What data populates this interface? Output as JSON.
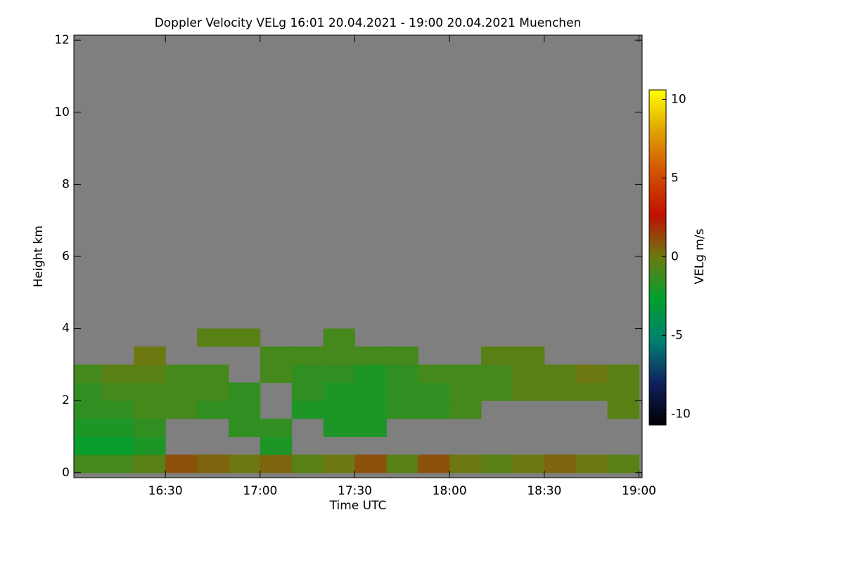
{
  "chart_data": {
    "type": "heatmap",
    "title": "Doppler Velocity VELg   16:01 20.04.2021 - 19:00 20.04.2021 Muenchen",
    "x_label": "Time UTC",
    "y_label": "Height km",
    "colorbar_label": "VELg m/s",
    "x_edges": [
      961,
      970,
      980,
      990,
      1000,
      1010,
      1020,
      1030,
      1040,
      1050,
      1060,
      1070,
      1080,
      1090,
      1100,
      1110,
      1120,
      1130,
      1140
    ],
    "y_edges": [
      0,
      0.5,
      1,
      1.5,
      2,
      2.5,
      3,
      3.5,
      4
    ],
    "values": [
      [
        -1,
        -1,
        -0.5,
        1,
        0.5,
        0,
        0.5,
        -0.5,
        0,
        1,
        -0.5,
        1,
        0,
        -0.5,
        0,
        0.5,
        0,
        -0.5
      ],
      [
        -2.5,
        -2.5,
        -2,
        null,
        null,
        null,
        -2,
        null,
        null,
        null,
        null,
        null,
        null,
        null,
        null,
        null,
        null,
        null
      ],
      [
        -2,
        -2,
        -1.5,
        null,
        null,
        -1.5,
        -1.5,
        null,
        -2,
        -2,
        null,
        null,
        null,
        null,
        null,
        null,
        null,
        null
      ],
      [
        -1.5,
        -1.5,
        -1,
        -1,
        -1.5,
        -1.5,
        null,
        -2,
        -2,
        -2,
        -1.5,
        -1.5,
        -1,
        null,
        null,
        null,
        null,
        -0.5
      ],
      [
        -1.5,
        -1,
        -1,
        -1,
        -1,
        -1.5,
        null,
        -1.5,
        -2,
        -2,
        -1.5,
        -1.5,
        -1,
        -1,
        -0.5,
        -0.5,
        -0.5,
        -0.5
      ],
      [
        -1,
        -0.5,
        -0.5,
        -1,
        -1,
        null,
        -1,
        -1.5,
        -1.5,
        -2,
        -1.5,
        -1,
        -1,
        -1,
        -0.5,
        -0.5,
        0,
        -0.5
      ],
      [
        null,
        null,
        0,
        null,
        null,
        null,
        -1,
        -1,
        -1,
        -1,
        -1,
        null,
        null,
        -0.5,
        -0.5,
        null,
        null,
        null
      ],
      [
        null,
        null,
        null,
        null,
        -0.5,
        -0.5,
        null,
        null,
        -1,
        null,
        null,
        null,
        null,
        null,
        null,
        null,
        null,
        null
      ]
    ],
    "xlim": [
      961,
      1141
    ],
    "xticks": [
      {
        "value": 990,
        "label": "16:30"
      },
      {
        "value": 1020,
        "label": "17:00"
      },
      {
        "value": 1050,
        "label": "17:30"
      },
      {
        "value": 1080,
        "label": "18:00"
      },
      {
        "value": 1110,
        "label": "18:30"
      },
      {
        "value": 1140,
        "label": "19:00"
      }
    ],
    "ylim": [
      -0.14,
      12.14
    ],
    "yticks": [
      0,
      2,
      4,
      6,
      8,
      10,
      12
    ],
    "clim": [
      -10.7,
      10.6
    ],
    "cticks": [
      10,
      5,
      0,
      -5,
      -10
    ],
    "colormap": [
      "#000000",
      "#102060",
      "#008070",
      "#00a030",
      "#6b7a10",
      "#c01000",
      "#d05000",
      "#e0a000",
      "#ffff00"
    ],
    "nodata_color": "#7f7f7f"
  }
}
